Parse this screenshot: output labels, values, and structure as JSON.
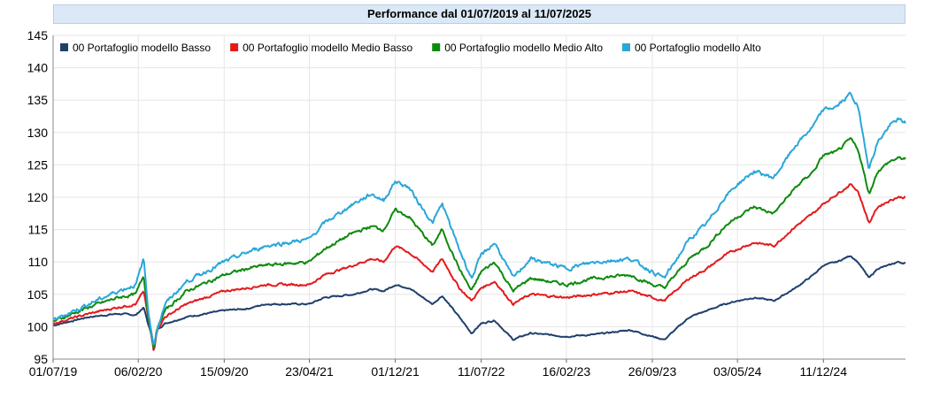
{
  "chart_data": {
    "type": "line",
    "title": "Performance dal 01/07/2019 al 11/07/2025",
    "xlabel": "",
    "ylabel": "",
    "ylim": [
      95,
      145
    ],
    "yticks": [
      95,
      100,
      105,
      110,
      115,
      120,
      125,
      130,
      135,
      140,
      145
    ],
    "xlim": [
      "2019-07-01",
      "2025-07-11"
    ],
    "xticks": [
      "01/07/19",
      "06/02/20",
      "15/09/20",
      "23/04/21",
      "01/12/21",
      "11/07/22",
      "16/02/23",
      "26/09/23",
      "03/05/24",
      "11/12/24"
    ],
    "grid": true,
    "legend_position": "top-left",
    "x": [
      "2019-07-01",
      "2019-10-01",
      "2019-12-15",
      "2020-01-31",
      "2020-02-20",
      "2020-03-02",
      "2020-03-10",
      "2020-03-17",
      "2020-03-25",
      "2020-04-15",
      "2020-06-10",
      "2020-09-15",
      "2020-11-15",
      "2021-01-01",
      "2021-04-23",
      "2021-06-01",
      "2021-08-15",
      "2021-10-01",
      "2021-11-01",
      "2021-12-01",
      "2022-01-05",
      "2022-03-07",
      "2022-04-01",
      "2022-05-15",
      "2022-06-16",
      "2022-07-11",
      "2022-08-15",
      "2022-10-01",
      "2022-11-15",
      "2023-02-16",
      "2023-05-01",
      "2023-07-31",
      "2023-09-26",
      "2023-10-27",
      "2023-12-31",
      "2024-02-15",
      "2024-03-31",
      "2024-05-03",
      "2024-06-15",
      "2024-08-05",
      "2024-09-30",
      "2024-11-15",
      "2024-12-11",
      "2025-01-15",
      "2025-02-19",
      "2025-03-10",
      "2025-04-08",
      "2025-04-30",
      "2025-05-31",
      "2025-06-20",
      "2025-07-11"
    ],
    "series": [
      {
        "name": "00 Portafoglio modello Basso",
        "color": "#1f3f6e",
        "values": [
          100.2,
          101.5,
          102.0,
          101.8,
          103.0,
          100.5,
          99.0,
          96.5,
          99.5,
          100.5,
          101.5,
          102.5,
          102.8,
          103.5,
          103.5,
          104.5,
          105.0,
          105.8,
          105.5,
          106.5,
          106.0,
          103.5,
          104.8,
          101.5,
          99.0,
          100.5,
          101.0,
          98.0,
          99.0,
          98.5,
          98.8,
          99.5,
          98.5,
          98.0,
          101.5,
          102.5,
          103.5,
          104.0,
          104.5,
          104.0,
          106.0,
          108.0,
          109.5,
          110.0,
          111.0,
          110.0,
          107.5,
          109.0,
          109.5,
          110.0,
          109.8
        ]
      },
      {
        "name": "00 Portafoglio modello Medio Basso",
        "color": "#e31a1c",
        "values": [
          100.5,
          102.0,
          103.0,
          103.5,
          105.5,
          101.5,
          99.5,
          96.0,
          99.5,
          101.5,
          103.5,
          105.5,
          106.0,
          106.5,
          106.5,
          108.0,
          109.5,
          110.5,
          110.0,
          112.5,
          111.5,
          108.5,
          110.5,
          106.0,
          104.0,
          106.0,
          107.0,
          103.5,
          105.0,
          104.5,
          105.0,
          105.5,
          104.5,
          104.0,
          107.5,
          109.0,
          111.0,
          112.0,
          113.0,
          112.5,
          115.5,
          117.5,
          119.0,
          120.5,
          122.0,
          121.0,
          116.0,
          118.5,
          119.5,
          120.0,
          120.0
        ]
      },
      {
        "name": "00 Portafoglio modello Medio Alto",
        "color": "#0d8a0d",
        "values": [
          100.8,
          103.0,
          104.5,
          105.0,
          108.0,
          102.0,
          99.5,
          96.5,
          99.5,
          102.5,
          105.5,
          108.0,
          109.0,
          109.5,
          110.0,
          112.0,
          114.5,
          115.5,
          115.0,
          118.0,
          117.0,
          112.5,
          115.0,
          109.0,
          105.5,
          108.5,
          110.0,
          105.5,
          107.5,
          106.5,
          107.5,
          108.0,
          106.5,
          106.0,
          110.5,
          112.5,
          115.5,
          117.0,
          118.5,
          117.5,
          121.5,
          124.0,
          126.5,
          127.0,
          129.0,
          127.5,
          120.5,
          124.0,
          125.5,
          126.0,
          126.0
        ]
      },
      {
        "name": "00 Portafoglio modello Alto",
        "color": "#2aa6d9",
        "values": [
          101.0,
          103.5,
          105.5,
          106.5,
          110.5,
          103.0,
          99.5,
          97.0,
          99.5,
          103.5,
          107.0,
          110.0,
          111.5,
          112.5,
          113.5,
          116.0,
          119.0,
          120.5,
          119.5,
          122.5,
          121.5,
          116.0,
          119.0,
          112.0,
          107.5,
          111.0,
          113.0,
          107.5,
          110.5,
          109.0,
          110.0,
          110.5,
          108.5,
          107.5,
          113.5,
          116.0,
          120.0,
          122.0,
          124.0,
          123.0,
          128.0,
          131.0,
          133.5,
          134.0,
          136.0,
          134.0,
          124.5,
          128.5,
          131.0,
          132.0,
          131.5
        ]
      }
    ]
  }
}
